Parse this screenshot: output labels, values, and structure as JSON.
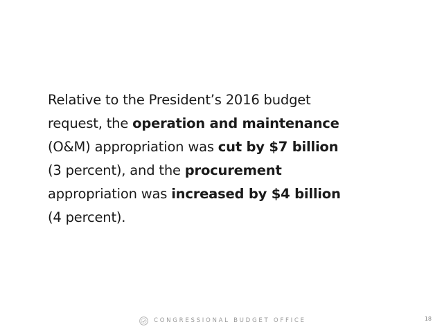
{
  "slide": {
    "lines": [
      [
        {
          "text": "Relative to the President’s 2016 budget",
          "bold": false
        }
      ],
      [
        {
          "text": "request, the ",
          "bold": false
        },
        {
          "text": "operation and maintenance",
          "bold": true
        }
      ],
      [
        {
          "text": "(O&M) appropriation was ",
          "bold": false
        },
        {
          "text": "cut by $7 billion",
          "bold": true
        }
      ],
      [
        {
          "text": "(3 percent), and the ",
          "bold": false
        },
        {
          "text": "procurement",
          "bold": true
        }
      ],
      [
        {
          "text": "appropriation was ",
          "bold": false
        },
        {
          "text": "increased by $4 billion",
          "bold": true
        }
      ],
      [
        {
          "text": "(4 percent).",
          "bold": false
        }
      ]
    ]
  },
  "footer": {
    "logo_icon": "cbo-seal-icon",
    "org_name": "CONGRESSIONAL BUDGET OFFICE",
    "page_number": "18"
  },
  "colors": {
    "text": "#1a1a1a",
    "footer_text": "#9a9a9a",
    "background": "#ffffff"
  }
}
